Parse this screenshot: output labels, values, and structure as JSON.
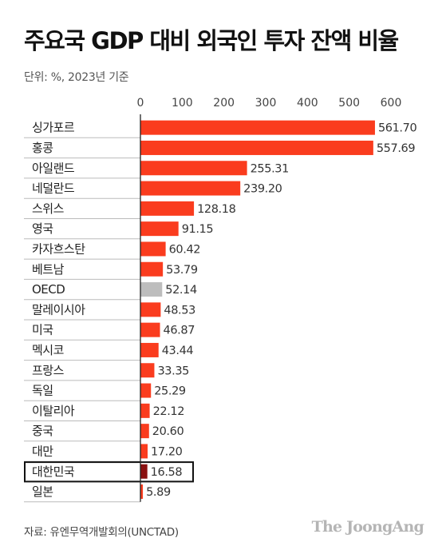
{
  "chart_data": {
    "type": "bar",
    "orientation": "horizontal",
    "title": "주요국 GDP 대비 외국인 투자 잔액 비율",
    "subtitle": "단위: %, 2023년 기준",
    "xlim": [
      0,
      600
    ],
    "xticks": [
      "0",
      "100",
      "200",
      "300",
      "400",
      "500",
      "600"
    ],
    "categories": [
      "싱가포르",
      "홍콩",
      "아일랜드",
      "네덜란드",
      "스위스",
      "영국",
      "카자흐스탄",
      "베트남",
      "OECD",
      "말레이시아",
      "미국",
      "멕시코",
      "프랑스",
      "독일",
      "이탈리아",
      "중국",
      "대만",
      "대한민국",
      "일본"
    ],
    "values": [
      561.7,
      557.69,
      255.31,
      239.2,
      128.18,
      91.15,
      60.42,
      53.79,
      52.14,
      48.53,
      46.87,
      43.44,
      33.35,
      25.29,
      22.12,
      20.6,
      17.2,
      16.58,
      5.89
    ],
    "value_labels": [
      "561.70",
      "557.69",
      "255.31",
      "239.20",
      "128.18",
      "91.15",
      "60.42",
      "53.79",
      "52.14",
      "48.53",
      "46.87",
      "43.44",
      "33.35",
      "25.29",
      "22.12",
      "20.60",
      "17.20",
      "16.58",
      "5.89"
    ],
    "highlight": "대한민국",
    "colors": {
      "bar": "#fa3c1e",
      "oecd": "#bdbdbd",
      "highlight": "#8a1010",
      "axis": "#222222",
      "rule": "#bbbbbb"
    }
  },
  "source": "자료: 유엔무역개발회의(UNCTAD)",
  "brand": "The JoongAng"
}
